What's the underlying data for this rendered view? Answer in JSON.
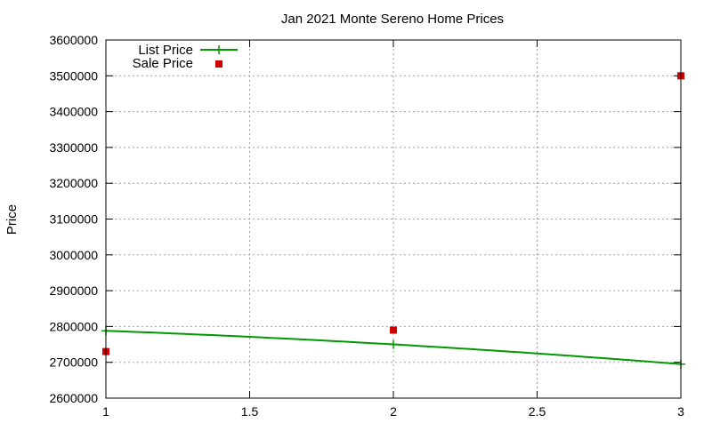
{
  "chart_data": {
    "type": "line",
    "title": "Jan 2021 Monte Sereno Home Prices",
    "xlabel": "",
    "ylabel": "Price",
    "xlim": [
      1,
      3
    ],
    "ylim": [
      2600000,
      3600000
    ],
    "xticks": [
      "1",
      "1.5",
      "2",
      "2.5",
      "3"
    ],
    "yticks": [
      "2600000",
      "2700000",
      "2800000",
      "2900000",
      "3000000",
      "3100000",
      "3200000",
      "3300000",
      "3400000",
      "3500000",
      "3600000"
    ],
    "grid": true,
    "legend": "top-left",
    "series": [
      {
        "name": "List Price",
        "style": "line-with-plus-markers",
        "color": "#009900",
        "points": [
          [
            1,
            2788000
          ],
          [
            2,
            2750000
          ],
          [
            3,
            2695000
          ]
        ]
      },
      {
        "name": "Sale Price",
        "style": "square-markers",
        "color": "#cc0000",
        "points": [
          [
            1,
            2730000
          ],
          [
            2,
            2790000
          ],
          [
            3,
            3500000
          ]
        ]
      }
    ]
  }
}
